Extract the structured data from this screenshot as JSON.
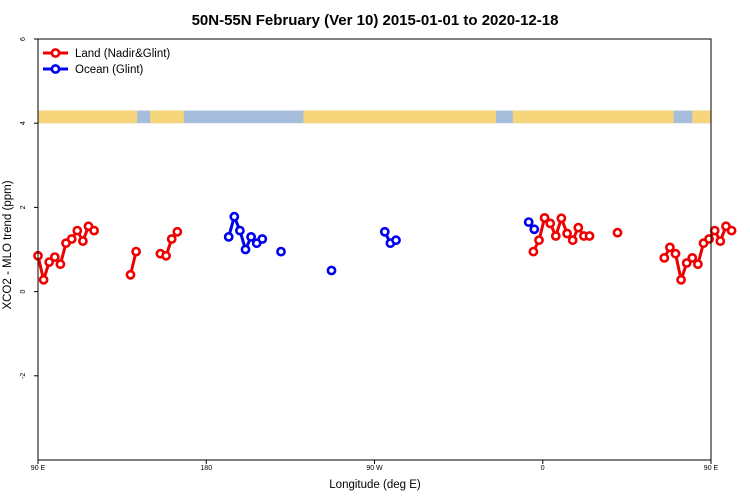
{
  "chart_data": {
    "type": "line",
    "title": "50N-55N February (Ver 10)   2015-01-01 to 2020-12-18",
    "xlabel": "Longitude (deg E)",
    "ylabel": "XCO2 - MLO trend (ppm)",
    "xlim": [
      90,
      450
    ],
    "ylim": [
      -4,
      6
    ],
    "x_ticks": [
      {
        "value": 90,
        "label": "90 E"
      },
      {
        "value": 180,
        "label": "180"
      },
      {
        "value": 270,
        "label": "90 W"
      },
      {
        "value": 360,
        "label": "0"
      },
      {
        "value": 450,
        "label": "90 E"
      },
      {
        "value": 540,
        "label": "180"
      }
    ],
    "y_ticks": [
      {
        "value": -2,
        "label": "-2"
      },
      {
        "value": 0,
        "label": "0"
      },
      {
        "value": 2,
        "label": "2"
      },
      {
        "value": 4,
        "label": "4"
      },
      {
        "value": 6,
        "label": "6"
      }
    ],
    "legend_position": "top-left",
    "land_band": {
      "y_bottom": 4.0,
      "y_top": 4.3,
      "ocean_color": "#a6bddb",
      "land_color": "#f6d67a"
    },
    "series": [
      {
        "name": "Land (Nadir&Glint)",
        "color": "#ee0000",
        "segments": [
          [
            [
              90,
              0.85
            ],
            [
              93,
              0.28
            ],
            [
              96,
              0.7
            ],
            [
              99,
              0.82
            ],
            [
              102,
              0.65
            ],
            [
              105,
              1.15
            ],
            [
              108,
              1.25
            ],
            [
              111,
              1.45
            ],
            [
              114,
              1.2
            ],
            [
              117,
              1.55
            ],
            [
              120,
              1.45
            ]
          ],
          [
            [
              139.5,
              0.4
            ],
            [
              142.5,
              0.95
            ]
          ],
          [
            [
              155.5,
              0.9
            ],
            [
              158.5,
              0.85
            ],
            [
              161.5,
              1.25
            ],
            [
              164.5,
              1.42
            ]
          ],
          [
            [
              355,
              0.95
            ],
            [
              358,
              1.22
            ],
            [
              361,
              1.75
            ],
            [
              364,
              1.62
            ],
            [
              367,
              1.32
            ],
            [
              370,
              1.74
            ],
            [
              373,
              1.38
            ],
            [
              376,
              1.22
            ],
            [
              379,
              1.52
            ],
            [
              382,
              1.32
            ],
            [
              385,
              1.32
            ]
          ],
          [
            [
              400,
              1.4
            ]
          ],
          [
            [
              425,
              0.8
            ],
            [
              428,
              1.05
            ],
            [
              431,
              0.9
            ],
            [
              434,
              0.28
            ],
            [
              437,
              0.68
            ],
            [
              440,
              0.8
            ],
            [
              443,
              0.65
            ],
            [
              446,
              1.15
            ],
            [
              449,
              1.25
            ],
            [
              452,
              1.45
            ],
            [
              455,
              1.2
            ],
            [
              458,
              1.55
            ],
            [
              461,
              1.45
            ]
          ]
        ]
      },
      {
        "name": "Ocean (Glint)",
        "color": "#0000ee",
        "segments": [
          [
            [
              192,
              1.3
            ],
            [
              195,
              1.78
            ],
            [
              198,
              1.45
            ],
            [
              201,
              1.0
            ],
            [
              204,
              1.3
            ],
            [
              207,
              1.15
            ],
            [
              210,
              1.25
            ]
          ],
          [
            [
              220,
              0.95
            ]
          ],
          [
            [
              247,
              0.5
            ]
          ],
          [
            [
              275.5,
              1.42
            ],
            [
              278.5,
              1.15
            ],
            [
              281.5,
              1.22
            ]
          ],
          [
            [
              352.5,
              1.65
            ],
            [
              355.5,
              1.48
            ]
          ]
        ]
      }
    ]
  }
}
